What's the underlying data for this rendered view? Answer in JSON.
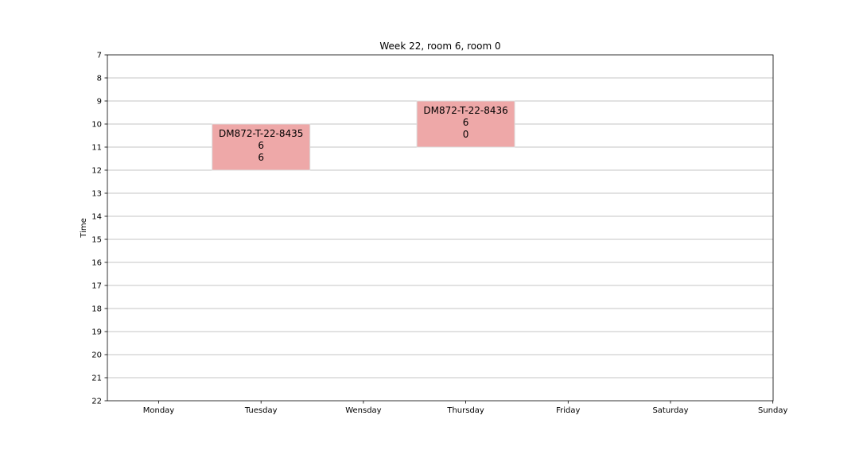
{
  "chart_data": {
    "type": "timetable",
    "title": "Week 22, room 6, room 0",
    "ylabel": "Time",
    "xlabel": "",
    "ylim": [
      7,
      22
    ],
    "y_inverted": true,
    "y_ticks": [
      7,
      8,
      9,
      10,
      11,
      12,
      13,
      14,
      15,
      16,
      17,
      18,
      19,
      20,
      21,
      22
    ],
    "x_ticks": [
      "Monday",
      "Tuesday",
      "Wensday",
      "Thursday",
      "Friday",
      "Saturday",
      "Sunday"
    ],
    "grid": "horizontal",
    "events": [
      {
        "day": "Tuesday",
        "start": 10,
        "end": 12,
        "lines": [
          "DM872-T-22-8435",
          "6",
          "6"
        ],
        "color": "#eea8a8"
      },
      {
        "day": "Thursday",
        "start": 9,
        "end": 11,
        "lines": [
          "DM872-T-22-8436",
          "6",
          "0"
        ],
        "color": "#eea8a8"
      }
    ]
  }
}
